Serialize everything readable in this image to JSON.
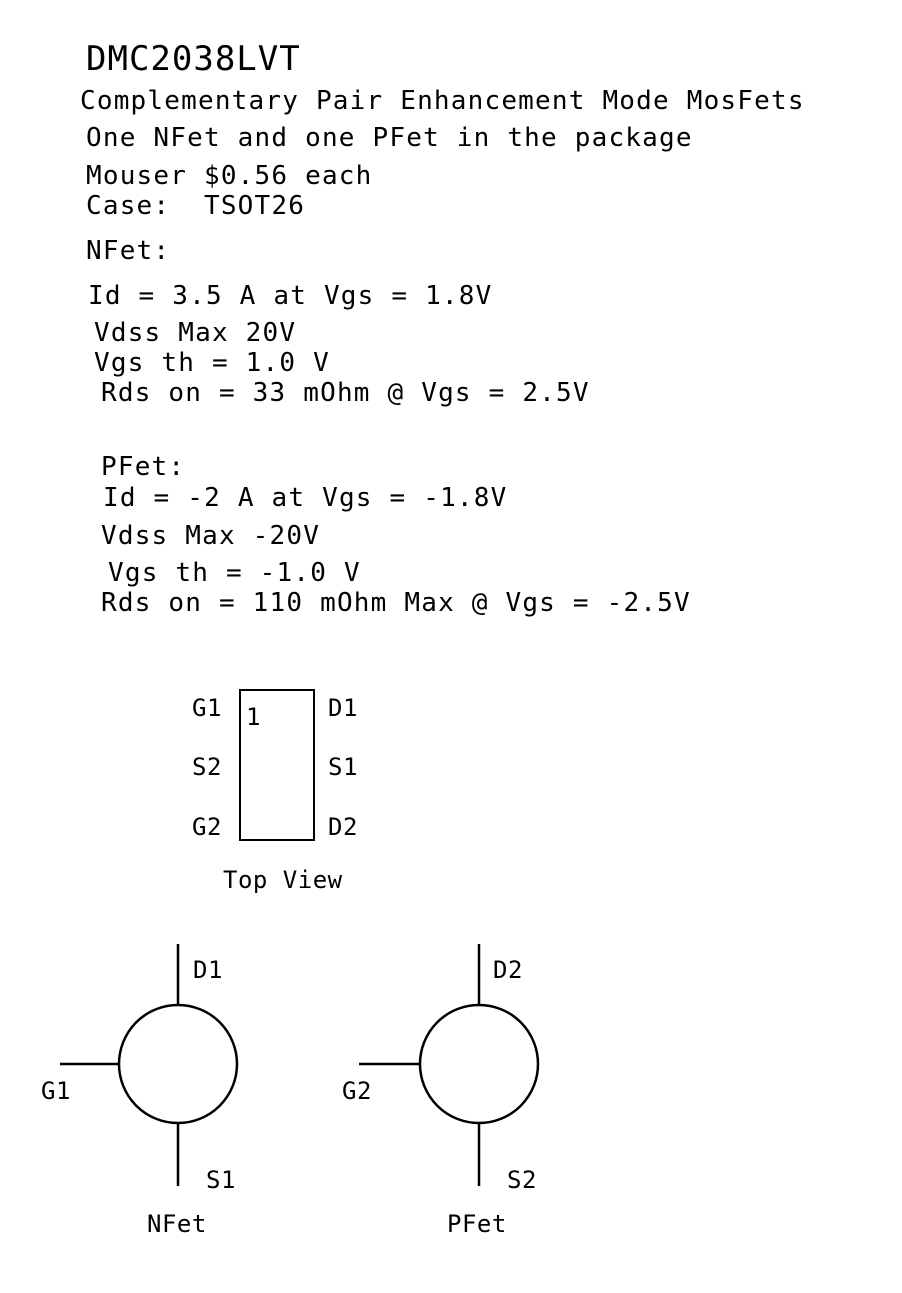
{
  "header": {
    "part_number": "DMC2038LVT",
    "description": "Complementary Pair Enhancement Mode MosFets",
    "package_note": "One NFet and one PFet in the package",
    "price": "Mouser $0.56 each",
    "case": "Case:  TSOT26"
  },
  "nfet_specs": {
    "heading": "NFet:",
    "id": "Id = 3.5 A at Vgs = 1.8V",
    "vdss": "Vdss Max 20V",
    "vgs_th": "Vgs th = 1.0 V",
    "rds_on": "Rds on = 33 mOhm @ Vgs = 2.5V"
  },
  "pfet_specs": {
    "heading": "PFet:",
    "id": "Id = -2 A at Vgs = -1.8V",
    "vdss": "Vdss Max -20V",
    "vgs_th": "Vgs th = -1.0 V",
    "rds_on": "Rds on = 110 mOhm Max @ Vgs = -2.5V"
  },
  "package_diagram": {
    "pin1_marker": "1",
    "left_pins": [
      "G1",
      "S2",
      "G2"
    ],
    "right_pins": [
      "D1",
      "S1",
      "D2"
    ],
    "caption": "Top View"
  },
  "nfet_symbol": {
    "drain": "D1",
    "gate": "G1",
    "source": "S1",
    "label": "NFet"
  },
  "pfet_symbol": {
    "drain": "D2",
    "gate": "G2",
    "source": "S2",
    "label": "PFet"
  }
}
